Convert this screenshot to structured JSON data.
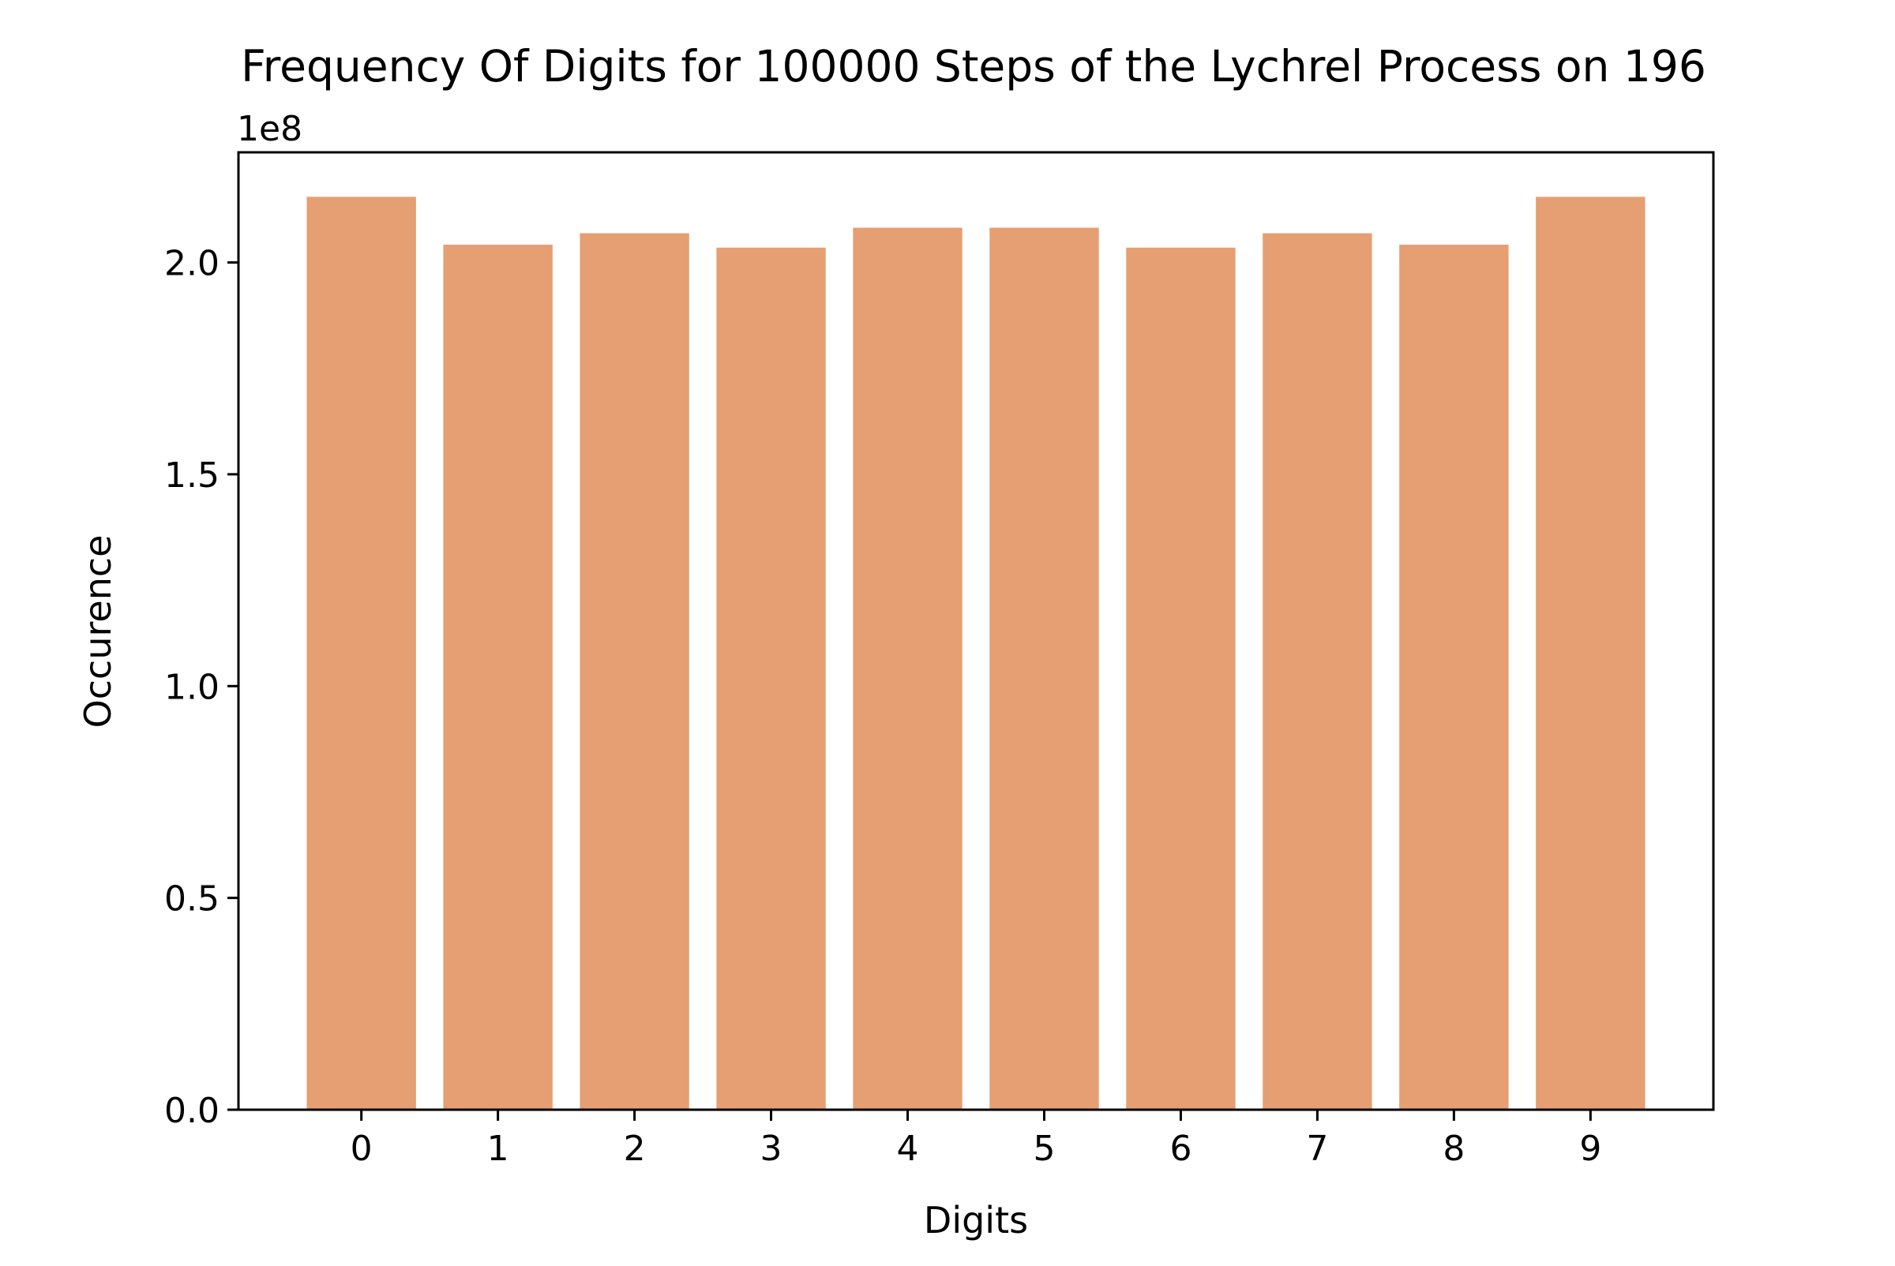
{
  "chart_data": {
    "type": "bar",
    "title": "Frequency Of Digits for 100000 Steps of the Lychrel Process on 196",
    "xlabel": "Digits",
    "ylabel": "Occurence",
    "y_offset_label": "1e8",
    "y_scale": 100000000,
    "categories": [
      "0",
      "1",
      "2",
      "3",
      "4",
      "5",
      "6",
      "7",
      "8",
      "9"
    ],
    "values": [
      215500000,
      204200000,
      206900000,
      203500000,
      208200000,
      208200000,
      203500000,
      206900000,
      204200000,
      215500000
    ],
    "xlim": [
      -0.9,
      9.9
    ],
    "ylim": [
      0,
      226000000
    ],
    "y_ticks": [
      0,
      50000000,
      100000000,
      150000000,
      200000000
    ],
    "y_tick_labels": [
      "0.0",
      "0.5",
      "1.0",
      "1.5",
      "2.0"
    ],
    "x_ticks": [
      0,
      1,
      2,
      3,
      4,
      5,
      6,
      7,
      8,
      9
    ],
    "x_tick_labels": [
      "0",
      "1",
      "2",
      "3",
      "4",
      "5",
      "6",
      "7",
      "8",
      "9"
    ],
    "bar_color": "#e59f72",
    "grid": false,
    "legend": "none"
  }
}
